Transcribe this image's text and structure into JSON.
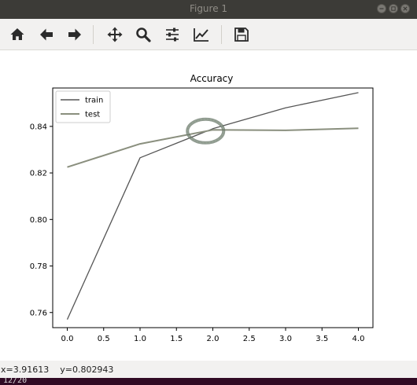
{
  "window": {
    "title": "Figure 1",
    "buttons": [
      "minimize",
      "maximize",
      "close"
    ]
  },
  "toolbar": {
    "tools": [
      {
        "name": "home-button",
        "icon": "home-icon",
        "tooltip": "Reset original view"
      },
      {
        "name": "back-button",
        "icon": "arrow-left-icon",
        "tooltip": "Back to previous view"
      },
      {
        "name": "forward-button",
        "icon": "arrow-right-icon",
        "tooltip": "Forward to next view"
      },
      {
        "name": "pan-button",
        "icon": "move-icon",
        "tooltip": "Pan axes"
      },
      {
        "name": "zoom-button",
        "icon": "magnifier-icon",
        "tooltip": "Zoom to rectangle"
      },
      {
        "name": "subplots-button",
        "icon": "sliders-icon",
        "tooltip": "Configure subplots"
      },
      {
        "name": "edit-axes-button",
        "icon": "line-chart-icon",
        "tooltip": "Edit axis, curve and image parameters"
      },
      {
        "name": "save-button",
        "icon": "floppy-disk-icon",
        "tooltip": "Save the figure"
      }
    ],
    "icon_color": "#2b2b2b"
  },
  "chart_data": {
    "type": "line",
    "title": "Accuracy",
    "xlabel": "",
    "ylabel": "",
    "x": [
      0,
      1,
      2,
      3,
      4
    ],
    "xlim": [
      -0.2,
      4.2
    ],
    "ylim": [
      0.7535,
      0.8565
    ],
    "xticks": [
      0.0,
      0.5,
      1.0,
      1.5,
      2.0,
      2.5,
      3.0,
      3.5,
      4.0
    ],
    "xtick_labels": [
      "0.0",
      "0.5",
      "1.0",
      "1.5",
      "2.0",
      "2.5",
      "3.0",
      "3.5",
      "4.0"
    ],
    "yticks": [
      0.76,
      0.78,
      0.8,
      0.82,
      0.84
    ],
    "ytick_labels": [
      "0.76",
      "0.78",
      "0.80",
      "0.82",
      "0.84"
    ],
    "grid": false,
    "legend_position": "upper-left",
    "series": [
      {
        "name": "train",
        "values": [
          0.757,
          0.8265,
          0.839,
          0.848,
          0.8545
        ],
        "color": "#555555"
      },
      {
        "name": "test",
        "values": [
          0.8225,
          0.8325,
          0.8385,
          0.8383,
          0.8392
        ],
        "color": "#8a8f7e"
      }
    ],
    "annotation": {
      "type": "ellipse",
      "x": 1.9,
      "y": 0.838,
      "color": "#6b7a6b"
    }
  },
  "status": {
    "x_readout": "x=3.91613",
    "y_readout": "y=0.802943"
  },
  "terminal": {
    "text": "12/20"
  }
}
